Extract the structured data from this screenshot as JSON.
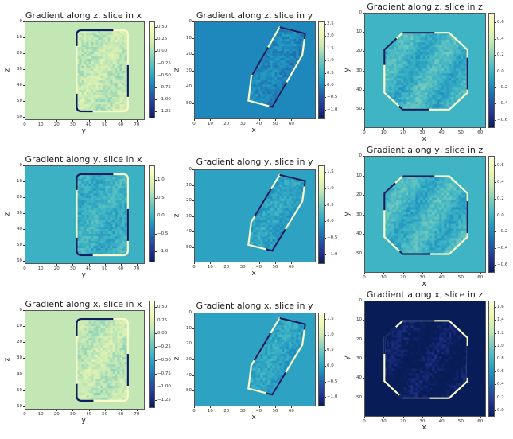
{
  "colors": {
    "cmap": [
      "#ffffd9",
      "#edf8b1",
      "#c7e9b4",
      "#7fcdbb",
      "#41b6c4",
      "#1d91c0",
      "#225ea8",
      "#253494",
      "#081d58"
    ]
  },
  "chart_data": [
    {
      "type": "heatmap",
      "title": "Gradient along z, slice in x",
      "xlabel": "y",
      "ylabel": "z",
      "xticks": [
        "0",
        "10",
        "20",
        "30",
        "40",
        "50",
        "60",
        "70"
      ],
      "yticks": [
        "0",
        "10",
        "20",
        "30",
        "40",
        "50",
        "60"
      ],
      "xlim": [
        0,
        75
      ],
      "ylim": [
        0,
        62
      ],
      "cbar_ticks": [
        "0.50",
        "0.25",
        "0.00",
        "−0.25",
        "−0.50",
        "−0.75",
        "−1.00",
        "−1.25"
      ],
      "clim": [
        -1.4,
        0.62
      ],
      "bg": 0.1,
      "shape": "rounded-rect",
      "region": {
        "x": [
          32,
          64
        ],
        "y": [
          5,
          56
        ]
      }
    },
    {
      "type": "heatmap",
      "title": "Gradient along z, slice in y",
      "xlabel": "x",
      "ylabel": "z",
      "xticks": [
        "0",
        "10",
        "20",
        "30",
        "40",
        "50",
        "60"
      ],
      "yticks": [
        "0",
        "10",
        "20",
        "30",
        "40",
        "50"
      ],
      "xlim": [
        0,
        75
      ],
      "ylim": [
        0,
        60
      ],
      "cbar_ticks": [
        "2.5",
        "2.0",
        "1.5",
        "1.0",
        "0.5",
        "0.0",
        "−0.5",
        "−1.0"
      ],
      "clim": [
        -1.4,
        2.6
      ],
      "bg": 0.0,
      "shape": "parallelogram",
      "region": {
        "x": [
          33,
          68
        ],
        "y": [
          3,
          52
        ]
      }
    },
    {
      "type": "heatmap",
      "title": "Gradient along z, slice in z",
      "xlabel": "x",
      "ylabel": "y",
      "xticks": [
        "0",
        "10",
        "20",
        "30",
        "40",
        "50",
        "60"
      ],
      "yticks": [
        "0",
        "10",
        "20",
        "30",
        "40",
        "50"
      ],
      "xlim": [
        0,
        63
      ],
      "ylim": [
        0,
        60
      ],
      "cbar_ticks": [
        "0.6",
        "0.4",
        "0.2",
        "0.0",
        "−0.2",
        "−0.4",
        "−0.6"
      ],
      "clim": [
        -0.7,
        0.72
      ],
      "bg": 0.0,
      "shape": "octagon",
      "region": {
        "x": [
          10,
          53
        ],
        "y": [
          10,
          50
        ]
      }
    },
    {
      "type": "heatmap",
      "title": "Gradient along y, slice in x",
      "xlabel": "y",
      "ylabel": "z",
      "xticks": [
        "0",
        "10",
        "20",
        "30",
        "40",
        "50",
        "60",
        "70"
      ],
      "yticks": [
        "0",
        "10",
        "20",
        "30",
        "40",
        "50",
        "60"
      ],
      "xlim": [
        0,
        75
      ],
      "ylim": [
        0,
        62
      ],
      "cbar_ticks": [
        "1.0",
        "0.5",
        "0.0",
        "−0.5",
        "−1.0"
      ],
      "clim": [
        -1.3,
        1.4
      ],
      "bg": 0.0,
      "shape": "rounded-rect",
      "region": {
        "x": [
          32,
          64
        ],
        "y": [
          5,
          56
        ]
      }
    },
    {
      "type": "heatmap",
      "title": "Gradient along y, slice in y",
      "xlabel": "x",
      "ylabel": "z",
      "xticks": [
        "0",
        "10",
        "20",
        "30",
        "40",
        "50",
        "60"
      ],
      "yticks": [
        "0",
        "10",
        "20",
        "30",
        "40",
        "50"
      ],
      "xlim": [
        0,
        75
      ],
      "ylim": [
        0,
        60
      ],
      "cbar_ticks": [
        "1.5",
        "1.0",
        "0.5",
        "0.0",
        "−0.5",
        "−1.0"
      ],
      "clim": [
        -1.3,
        1.7
      ],
      "bg": 0.0,
      "shape": "parallelogram",
      "region": {
        "x": [
          33,
          68
        ],
        "y": [
          3,
          52
        ]
      }
    },
    {
      "type": "heatmap",
      "title": "Gradient along y, slice in z",
      "xlabel": "x",
      "ylabel": "y",
      "xticks": [
        "0",
        "10",
        "20",
        "30",
        "40",
        "50",
        "60"
      ],
      "yticks": [
        "0",
        "10",
        "20",
        "30",
        "40",
        "50"
      ],
      "xlim": [
        0,
        63
      ],
      "ylim": [
        0,
        60
      ],
      "cbar_ticks": [
        "0.6",
        "0.4",
        "0.2",
        "0.0",
        "−0.2",
        "−0.4",
        "−0.6"
      ],
      "clim": [
        -0.7,
        0.72
      ],
      "bg": 0.0,
      "shape": "octagon",
      "region": {
        "x": [
          10,
          53
        ],
        "y": [
          10,
          50
        ]
      }
    },
    {
      "type": "heatmap",
      "title": "Gradient along x, slice in x",
      "xlabel": "y",
      "ylabel": "z",
      "xticks": [
        "0",
        "10",
        "20",
        "30",
        "40",
        "50",
        "60",
        "70"
      ],
      "yticks": [
        "0",
        "10",
        "20",
        "30",
        "40",
        "50",
        "60"
      ],
      "xlim": [
        0,
        75
      ],
      "ylim": [
        0,
        62
      ],
      "cbar_ticks": [
        "0.50",
        "0.25",
        "0.00",
        "−0.25",
        "−0.50",
        "−0.75",
        "−1.00",
        "−1.25"
      ],
      "clim": [
        -1.4,
        0.62
      ],
      "bg": 0.1,
      "shape": "rounded-rect",
      "region": {
        "x": [
          32,
          64
        ],
        "y": [
          5,
          56
        ]
      }
    },
    {
      "type": "heatmap",
      "title": "Gradient along x, slice in y",
      "xlabel": "x",
      "ylabel": "z",
      "xticks": [
        "0",
        "10",
        "20",
        "30",
        "40",
        "50",
        "60"
      ],
      "yticks": [
        "0",
        "10",
        "20",
        "30",
        "40",
        "50"
      ],
      "xlim": [
        0,
        75
      ],
      "ylim": [
        0,
        60
      ],
      "cbar_ticks": [
        "1.5",
        "1.0",
        "0.5",
        "0.0",
        "−0.5",
        "−1.0"
      ],
      "clim": [
        -1.3,
        1.7
      ],
      "bg": 0.0,
      "shape": "parallelogram",
      "region": {
        "x": [
          33,
          68
        ],
        "y": [
          3,
          52
        ]
      }
    },
    {
      "type": "heatmap",
      "title": "Gradient along x, slice in z",
      "xlabel": "x",
      "ylabel": "y",
      "xticks": [
        "0",
        "10",
        "20",
        "30",
        "40",
        "50",
        "60"
      ],
      "yticks": [
        "0",
        "10",
        "20",
        "30",
        "40",
        "50"
      ],
      "xlim": [
        0,
        63
      ],
      "ylim": [
        0,
        60
      ],
      "cbar_ticks": [
        "1.6",
        "1.4",
        "1.2",
        "1.0",
        "0.8",
        "0.6",
        "0.4",
        "0.2",
        "0.0"
      ],
      "clim": [
        -0.1,
        1.7
      ],
      "bg": -0.1,
      "shape": "octagon",
      "region": {
        "x": [
          10,
          53
        ],
        "y": [
          10,
          50
        ]
      }
    }
  ]
}
